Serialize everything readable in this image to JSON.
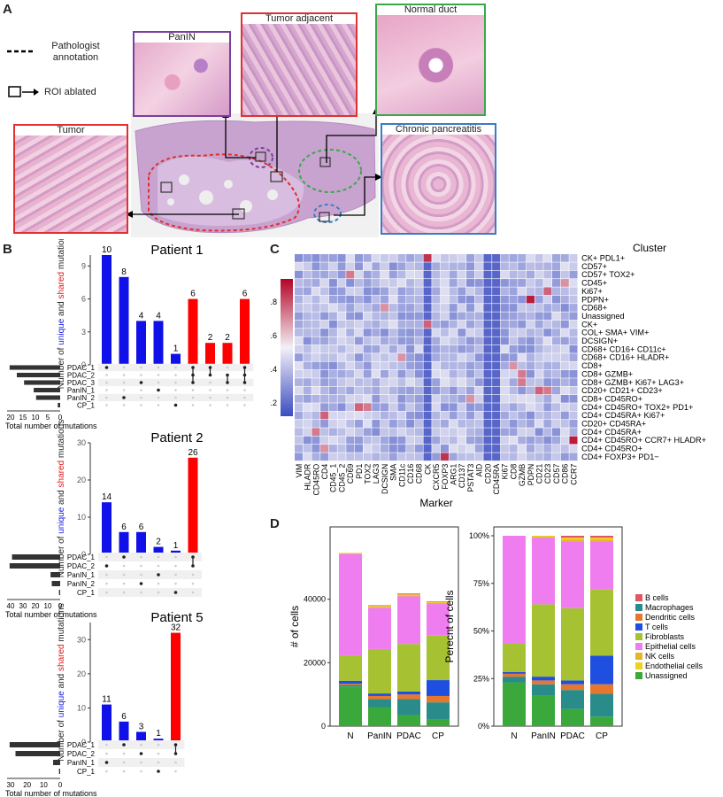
{
  "panels": {
    "a": "A",
    "b": "B",
    "c": "C",
    "d": "D"
  },
  "panelA": {
    "legend_annotation": "Pathologist annotation",
    "legend_roi": "ROI ablated",
    "tiles": {
      "panin": "PanIN",
      "tumor_adjacent": "Tumor adjacent",
      "normal_duct": "Normal duct",
      "tumor": "Tumor",
      "chronic_pancreatitis": "Chronic pancreatitis"
    },
    "colors": {
      "panin": "#7b3f9c",
      "tumor_adjacent": "#e03030",
      "normal_duct": "#3aa84a",
      "tumor": "#e03030",
      "chronic_pancreatitis": "#3a7cc4"
    }
  },
  "upset": {
    "ylabel_parts": [
      "Number of ",
      "unique",
      " and ",
      "shared",
      " mutations"
    ],
    "xlabel": "Total number of mutations",
    "patients": [
      {
        "title": "Patient 1",
        "sets": [
          "PDAC_1",
          "PDAC_2",
          "PDAC_3",
          "PanIN_1",
          "PanIN_2",
          "CP_1"
        ],
        "set_totals": [
          21,
          18,
          15,
          11,
          10,
          1
        ],
        "set_axis_ticks": [
          "20",
          "15",
          "10",
          "5",
          "0"
        ],
        "y_ticks": [
          "0",
          "3",
          "6",
          "9"
        ],
        "ymax": 10,
        "bars": [
          10,
          8,
          4,
          4,
          1,
          6,
          2,
          2,
          6
        ],
        "bar_colors": [
          "blue",
          "blue",
          "blue",
          "blue",
          "blue",
          "red",
          "red",
          "red",
          "red"
        ],
        "membership": [
          [
            0
          ],
          [
            4
          ],
          [
            2
          ],
          [
            3
          ],
          [
            5
          ],
          [
            0,
            1,
            2
          ],
          [
            0,
            1
          ],
          [
            1,
            2
          ],
          [
            0,
            1,
            2
          ]
        ]
      },
      {
        "title": "Patient 2",
        "sets": [
          "PDAC_1",
          "PDAC_2",
          "PanIN_1",
          "PanIN_2",
          "CP_1"
        ],
        "set_totals": [
          40,
          42,
          8,
          7,
          1
        ],
        "set_axis_ticks": [
          "40",
          "30",
          "20",
          "10",
          "0"
        ],
        "y_ticks": [
          "0",
          "10",
          "20",
          "30"
        ],
        "ymax": 30,
        "bars": [
          14,
          6,
          6,
          2,
          1,
          26
        ],
        "bar_colors": [
          "blue",
          "blue",
          "blue",
          "blue",
          "blue",
          "red"
        ],
        "membership": [
          [
            1
          ],
          [
            0
          ],
          [
            3
          ],
          [
            2
          ],
          [
            4
          ],
          [
            0,
            1
          ]
        ]
      },
      {
        "title": "Patient 5",
        "sets": [
          "PDAC_1",
          "PDAC_2",
          "PanIN_1",
          "CP_1"
        ],
        "set_totals": [
          43,
          38,
          6,
          1
        ],
        "set_axis_ticks": [
          "30",
          "20",
          "10",
          "0"
        ],
        "y_ticks": [
          "0",
          "10",
          "20",
          "30"
        ],
        "ymax": 35,
        "bars": [
          11,
          6,
          3,
          1,
          32
        ],
        "bar_colors": [
          "blue",
          "blue",
          "blue",
          "blue",
          "red"
        ],
        "membership": [
          [
            2
          ],
          [
            0
          ],
          [
            1
          ],
          [
            3
          ],
          [
            0,
            1
          ]
        ]
      }
    ]
  },
  "heatmap": {
    "title": "Cluster",
    "xlabel": "Marker",
    "scale_ticks": [
      "0.2",
      "0.4",
      "0.6",
      "0.8"
    ],
    "markers": [
      "VIM",
      "HLADR",
      "CD45RO",
      "CD4",
      "CD45_1",
      "CD45_2",
      "CD69",
      "PD1",
      "TOX2",
      "LAG3",
      "DCSIGN",
      "SMA",
      "CD11c",
      "CD16",
      "CD68",
      "CK",
      "CXCR5",
      "FOXP3",
      "ARG1",
      "CD137",
      "PSTAT3",
      "AID",
      "CD20",
      "CD45RA",
      "Ki67",
      "CD8",
      "GZMB",
      "PDPN",
      "CD21",
      "CD23",
      "CD57",
      "CD86",
      "CCR7"
    ],
    "clusters": [
      "CK+ PDL1+",
      "CD57+",
      "CD57+ TOX2+",
      "CD45+",
      "Ki67+",
      "PDPN+",
      "CD68+",
      "Unassigned",
      "CK+",
      "COL+ SMA+ VIM+",
      "DCSIGN+",
      "CD68+ CD16+ CD11c+",
      "CD68+ CD16+ HLADR+",
      "CD8+",
      "CD8+ GZMB+",
      "CD8+ GZMB+ Ki67+ LAG3+",
      "CD20+ CD21+ CD23+",
      "CD8+ CD45RO+",
      "CD4+ CD45RO+ TOX2+ PD1+",
      "CD4+ CD45RA+ Ki67+",
      "CD20+ CD45RA+",
      "CD4+ CD45RA+",
      "CD4+ CD45RO+ CCR7+ HLADR+",
      "CD4+ CD45RO+",
      "CD4+ FOXP3+ PD1−"
    ],
    "colors": {
      "low": "#3b4cc0",
      "mid": "#f2f0f7",
      "high": "#b40426"
    }
  },
  "panelD": {
    "left": {
      "ylabel": "# of cells",
      "y_ticks": [
        "0",
        "20000",
        "40000"
      ],
      "ymax": 60000,
      "categories": [
        "N",
        "PanIN",
        "PDAC",
        "CP"
      ],
      "stack_values": [
        [
          12500,
          500,
          400,
          900,
          8000,
          32000,
          0,
          300,
          0
        ],
        [
          6000,
          2500,
          1000,
          800,
          14000,
          13000,
          300,
          300,
          200
        ],
        [
          3500,
          5000,
          1500,
          900,
          15000,
          15000,
          300,
          300,
          300
        ],
        [
          2000,
          5500,
          2000,
          5000,
          14000,
          10000,
          300,
          300,
          200
        ]
      ]
    },
    "right": {
      "ylabel": "Perecnt of cells",
      "y_ticks": [
        "0%",
        "25%",
        "50%",
        "75%",
        "100%"
      ],
      "categories": [
        "N",
        "PanIN",
        "PDAC",
        "CP"
      ],
      "stack_values": [
        [
          23,
          3,
          1.5,
          1,
          15,
          56.5,
          0,
          0,
          0
        ],
        [
          16,
          6,
          2,
          2,
          38,
          35,
          0.5,
          0.5,
          0
        ],
        [
          9,
          10,
          3,
          2,
          38,
          35,
          1,
          1,
          1
        ],
        [
          5,
          12,
          5,
          15,
          35,
          25,
          1,
          1,
          1
        ]
      ]
    },
    "legend": [
      "B cells",
      "Macrophages",
      "Dendritic cells",
      "T cells",
      "Fibroblasts",
      "Epithelial cells",
      "NK cells",
      "Endothelial cells",
      "Unassigned"
    ],
    "legend_colors": [
      "#e05763",
      "#2a8b8b",
      "#e8772e",
      "#1f4fe0",
      "#a6c232",
      "#f07df0",
      "#e6b428",
      "#f0d020",
      "#3aa83a"
    ],
    "stack_order": [
      "Unassigned",
      "Macrophages",
      "Dendritic cells",
      "T cells",
      "Fibroblasts",
      "Epithelial cells",
      "NK cells",
      "Endothelial cells",
      "B cells"
    ],
    "stack_colors": [
      "#3aa83a",
      "#2a8b8b",
      "#e8772e",
      "#1f4fe0",
      "#a6c232",
      "#f07df0",
      "#e6b428",
      "#f0d020",
      "#e05763"
    ]
  }
}
